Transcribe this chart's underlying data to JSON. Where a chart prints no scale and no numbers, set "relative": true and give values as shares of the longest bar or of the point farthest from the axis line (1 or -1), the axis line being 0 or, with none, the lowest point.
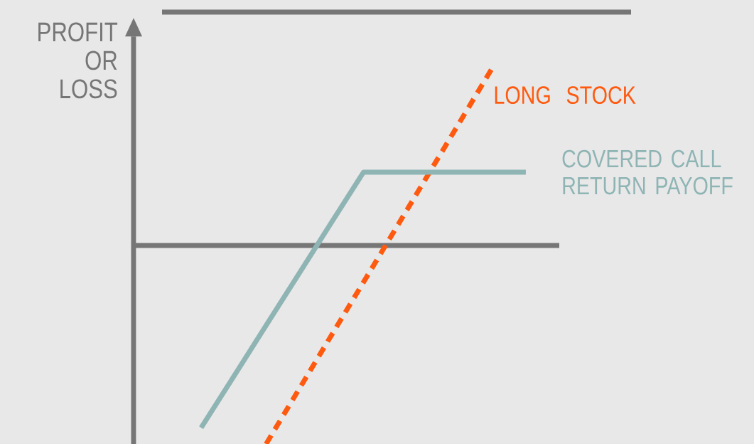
{
  "chart_data": {
    "type": "line",
    "relative": true,
    "ylabel": "PROFIT OR LOSS",
    "legend": "right",
    "categories": [
      null,
      null,
      null,
      null,
      null,
      null,
      null,
      null,
      null,
      null,
      null
    ],
    "series": [
      {
        "name": "LONG STOCK",
        "color": "#ff5a0f",
        "line_style": "dashed",
        "values": [
          null,
          null,
          -1,
          -0.728,
          -0.456,
          -0.185,
          0.087,
          0.359,
          0.631,
          0.903,
          null
        ]
      },
      {
        "name": "COVERED CALL RETURN PAYOFF",
        "color": "#8fb4b4",
        "line_style": "solid",
        "values": [
          -0.918,
          -0.661,
          -0.403,
          -0.146,
          0.112,
          0.369,
          0.369,
          0.369,
          0.369,
          0.369,
          0.369
        ]
      }
    ]
  }
}
